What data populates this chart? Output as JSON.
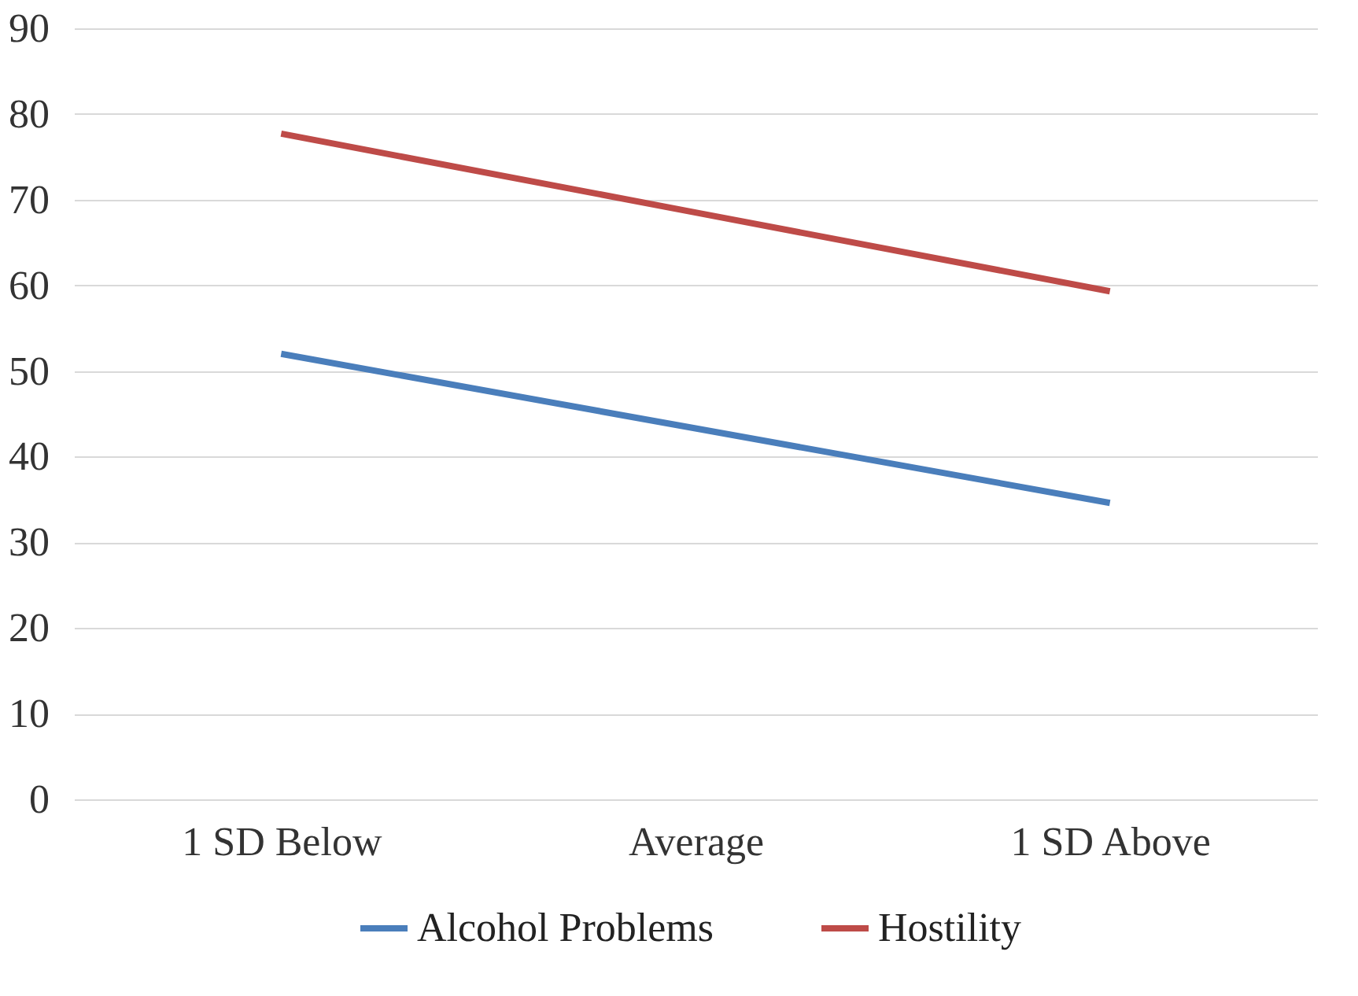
{
  "chart_data": {
    "type": "line",
    "categories": [
      "1 SD Below",
      "Average",
      "1 SD Above"
    ],
    "series": [
      {
        "name": "Alcohol Problems",
        "color": "#4a7ebb",
        "values": [
          52.0,
          43.3,
          34.6
        ]
      },
      {
        "name": "Hostility",
        "color": "#be4b48",
        "values": [
          77.7,
          68.5,
          59.3
        ]
      }
    ],
    "ylim": [
      0,
      90
    ],
    "yticks": [
      0,
      10,
      20,
      30,
      40,
      50,
      60,
      70,
      80,
      90
    ],
    "grid": "y",
    "legend": "bottom",
    "marker": "none",
    "line_style": "solid"
  }
}
